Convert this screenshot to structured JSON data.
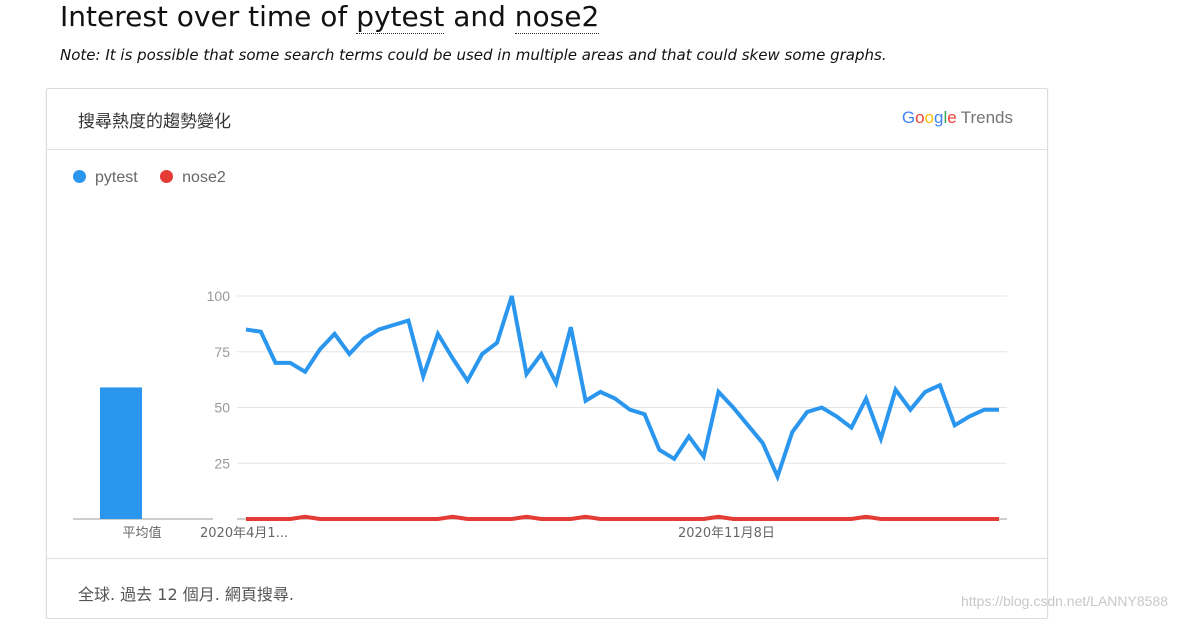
{
  "page": {
    "title_prefix": "Interest over time of ",
    "term1": "pytest",
    "title_join": " and ",
    "term2": "nose2",
    "note": "Note: It is possible that some search terms could be used in multiple areas and that could skew some graphs."
  },
  "card": {
    "title": "搜尋熱度的趨勢變化",
    "brand": "Google Trends",
    "footer": "全球. 過去 12 個月. 網頁搜尋."
  },
  "watermark": "https://blog.csdn.net/LANNY8588",
  "colors": {
    "pytest": "#2b96ee",
    "nose2": "#e43b36",
    "grid": "#e5e5e5",
    "axis": "#9e9e9e"
  },
  "chart_data": {
    "type": "line",
    "title": "",
    "ylim": [
      0,
      100
    ],
    "yticks": [
      25,
      50,
      75,
      100
    ],
    "grid": true,
    "legend": "top-left",
    "x_labels": [
      "2020年4月1...",
      "2020年11月8日"
    ],
    "x_label_indices": [
      0,
      32
    ],
    "average_label": "平均值",
    "averages": [
      59,
      0
    ],
    "series": [
      {
        "name": "pytest",
        "values": [
          85,
          84,
          70,
          70,
          66,
          76,
          83,
          74,
          81,
          85,
          87,
          89,
          64,
          83,
          72,
          62,
          74,
          79,
          100,
          65,
          74,
          61,
          86,
          53,
          57,
          54,
          49,
          47,
          31,
          27,
          37,
          28,
          57,
          50,
          42,
          34,
          19,
          39,
          48,
          50,
          46,
          41,
          54,
          36,
          58,
          49,
          57,
          60,
          42,
          46,
          49,
          49
        ]
      },
      {
        "name": "nose2",
        "values": [
          0,
          0,
          0,
          0,
          1,
          0,
          0,
          0,
          0,
          0,
          0,
          0,
          0,
          0,
          1,
          0,
          0,
          0,
          0,
          1,
          0,
          0,
          0,
          1,
          0,
          0,
          0,
          0,
          0,
          0,
          0,
          0,
          1,
          0,
          0,
          0,
          0,
          0,
          0,
          0,
          0,
          0,
          1,
          0,
          0,
          0,
          0,
          0,
          0,
          0,
          0,
          0
        ]
      }
    ]
  }
}
